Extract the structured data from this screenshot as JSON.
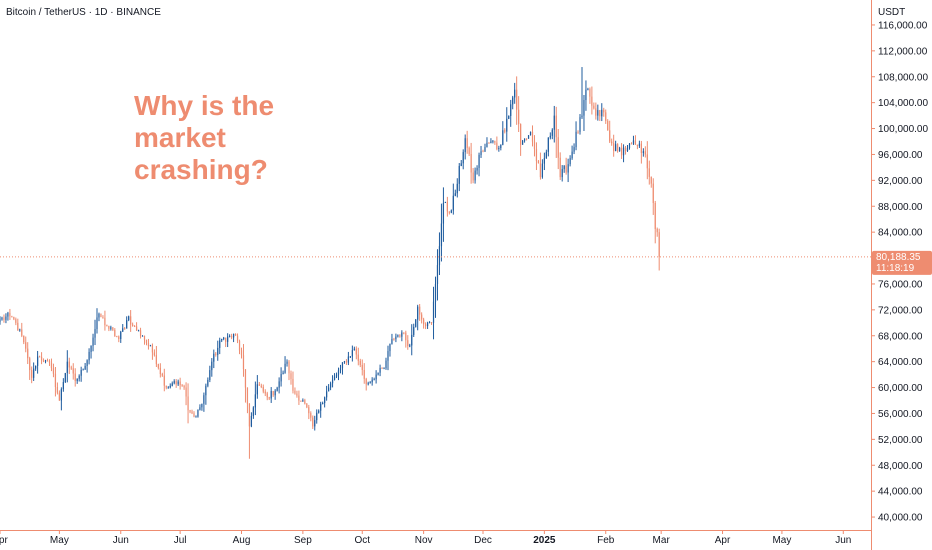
{
  "header": {
    "symbol_title": "Bitcoin / TetherUS · 1D · BINANCE",
    "currency": "USDT"
  },
  "annotation": {
    "lines": [
      "Why is the",
      "market",
      "crashing?"
    ],
    "color": "#ee8c70"
  },
  "colors": {
    "up": "#1f5c9e",
    "down": "#ee8c70",
    "axis": "#ee8c70",
    "price_tag": "#ee8c70"
  },
  "chart_data": {
    "type": "candlestick",
    "symbol": "BTCUSDT",
    "interval": "1D",
    "exchange": "BINANCE",
    "ylim": [
      38000,
      118000
    ],
    "y_ticks": [
      40000,
      44000,
      48000,
      52000,
      56000,
      60000,
      64000,
      68000,
      72000,
      76000,
      80000,
      84000,
      88000,
      92000,
      96000,
      100000,
      104000,
      108000,
      112000,
      116000
    ],
    "y_tick_labels": [
      "40,000.00",
      "44,000.00",
      "48,000.00",
      "52,000.00",
      "56,000.00",
      "60,000.00",
      "64,000.00",
      "68,000.00",
      "72,000.00",
      "76,000.00",
      "80,000.00",
      "84,000.00",
      "88,000.00",
      "92,000.00",
      "96,000.00",
      "100,000.00",
      "104,000.00",
      "108,000.00",
      "112,000.00",
      "116,000.00"
    ],
    "x_range": [
      "2024-04-01",
      "2025-06-15"
    ],
    "x_ticks": [
      {
        "label": "Apr",
        "date": "2024-04-01",
        "bold": false
      },
      {
        "label": "May",
        "date": "2024-05-01",
        "bold": false
      },
      {
        "label": "Jun",
        "date": "2024-06-01",
        "bold": false
      },
      {
        "label": "Jul",
        "date": "2024-07-01",
        "bold": false
      },
      {
        "label": "Aug",
        "date": "2024-08-01",
        "bold": false
      },
      {
        "label": "Sep",
        "date": "2024-09-01",
        "bold": false
      },
      {
        "label": "Oct",
        "date": "2024-10-01",
        "bold": false
      },
      {
        "label": "Nov",
        "date": "2024-11-01",
        "bold": false
      },
      {
        "label": "Dec",
        "date": "2024-12-01",
        "bold": false
      },
      {
        "label": "2025",
        "date": "2025-01-01",
        "bold": true
      },
      {
        "label": "Feb",
        "date": "2025-02-01",
        "bold": false
      },
      {
        "label": "Mar",
        "date": "2025-03-01",
        "bold": false
      },
      {
        "label": "Apr",
        "date": "2025-04-01",
        "bold": false
      },
      {
        "label": "May",
        "date": "2025-05-01",
        "bold": false
      },
      {
        "label": "Jun",
        "date": "2025-06-01",
        "bold": false
      }
    ],
    "series": [
      {
        "name": "",
        "close_points": [
          [
            "2024-04-01",
            70500
          ],
          [
            "2024-04-06",
            71000
          ],
          [
            "2024-04-09",
            70000
          ],
          [
            "2024-04-13",
            67000
          ],
          [
            "2024-04-17",
            61500
          ],
          [
            "2024-04-20",
            64800
          ],
          [
            "2024-04-24",
            64200
          ],
          [
            "2024-04-27",
            63000
          ],
          [
            "2024-05-01",
            58000
          ],
          [
            "2024-05-05",
            64000
          ],
          [
            "2024-05-09",
            61000
          ],
          [
            "2024-05-13",
            62800
          ],
          [
            "2024-05-16",
            65500
          ],
          [
            "2024-05-21",
            71400
          ],
          [
            "2024-05-25",
            69500
          ],
          [
            "2024-05-31",
            67500
          ],
          [
            "2024-06-05",
            71000
          ],
          [
            "2024-06-07",
            69500
          ],
          [
            "2024-06-12",
            68000
          ],
          [
            "2024-06-18",
            65000
          ],
          [
            "2024-06-24",
            60000
          ],
          [
            "2024-06-28",
            61000
          ],
          [
            "2024-07-03",
            60000
          ],
          [
            "2024-07-05",
            56500
          ],
          [
            "2024-07-08",
            55500
          ],
          [
            "2024-07-12",
            57500
          ],
          [
            "2024-07-17",
            64000
          ],
          [
            "2024-07-22",
            67500
          ],
          [
            "2024-07-29",
            68000
          ],
          [
            "2024-08-01",
            65000
          ],
          [
            "2024-08-03",
            60000
          ],
          [
            "2024-08-05",
            54000
          ],
          [
            "2024-08-09",
            60500
          ],
          [
            "2024-08-14",
            58500
          ],
          [
            "2024-08-18",
            59500
          ],
          [
            "2024-08-24",
            64000
          ],
          [
            "2024-08-27",
            59500
          ],
          [
            "2024-09-02",
            57500
          ],
          [
            "2024-09-06",
            54000
          ],
          [
            "2024-09-10",
            57500
          ],
          [
            "2024-09-14",
            60000
          ],
          [
            "2024-09-20",
            63000
          ],
          [
            "2024-09-27",
            66000
          ],
          [
            "2024-09-30",
            63500
          ],
          [
            "2024-10-03",
            60500
          ],
          [
            "2024-10-08",
            62000
          ],
          [
            "2024-10-12",
            63000
          ],
          [
            "2024-10-16",
            67500
          ],
          [
            "2024-10-21",
            68500
          ],
          [
            "2024-10-25",
            66500
          ],
          [
            "2024-10-29",
            72500
          ],
          [
            "2024-11-02",
            69500
          ],
          [
            "2024-11-05",
            70000
          ],
          [
            "2024-11-07",
            76000
          ],
          [
            "2024-11-11",
            88500
          ],
          [
            "2024-11-14",
            87000
          ],
          [
            "2024-11-17",
            90000
          ],
          [
            "2024-11-22",
            98500
          ],
          [
            "2024-11-26",
            92000
          ],
          [
            "2024-11-30",
            96500
          ],
          [
            "2024-12-05",
            98000
          ],
          [
            "2024-12-09",
            97000
          ],
          [
            "2024-12-13",
            101500
          ],
          [
            "2024-12-17",
            106000
          ],
          [
            "2024-12-20",
            97500
          ],
          [
            "2024-12-25",
            99500
          ],
          [
            "2024-12-30",
            92500
          ],
          [
            "2025-01-06",
            102000
          ],
          [
            "2025-01-09",
            92500
          ],
          [
            "2025-01-13",
            94500
          ],
          [
            "2025-01-20",
            102000
          ],
          [
            "2025-01-22",
            106000
          ],
          [
            "2025-01-27",
            102000
          ],
          [
            "2025-01-31",
            102500
          ],
          [
            "2025-02-03",
            98000
          ],
          [
            "2025-02-07",
            96500
          ],
          [
            "2025-02-12",
            97000
          ],
          [
            "2025-02-16",
            97500
          ],
          [
            "2025-02-20",
            96500
          ],
          [
            "2025-02-21",
            96000
          ],
          [
            "2025-02-24",
            91500
          ],
          [
            "2025-02-25",
            88500
          ],
          [
            "2025-02-26",
            84500
          ],
          [
            "2025-02-27",
            84000
          ],
          [
            "2025-02-28",
            80188
          ]
        ]
      }
    ],
    "extremes": {
      "low": [
        [
          "2024-08-05",
          49000
        ]
      ],
      "high": [
        [
          "2025-01-20",
          109500
        ]
      ]
    },
    "last_price": 80188.35,
    "last_price_label": "80,188.35",
    "countdown": "11:18:19"
  }
}
